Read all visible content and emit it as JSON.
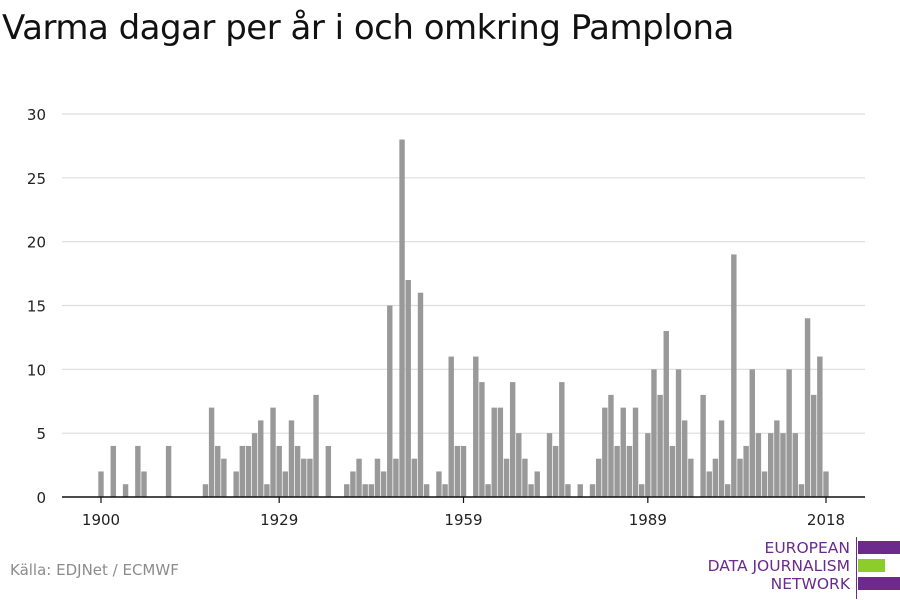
{
  "title": "Varma dagar per år i och omkring Pamplona",
  "source": "Källa: EDJNet / ECMWF",
  "logo": {
    "lines": [
      "EUROPEAN",
      "DATA JOURNALISM",
      "NETWORK"
    ],
    "colors": {
      "purple": "#6b2a8c",
      "green": "#8ccd2b"
    }
  },
  "chart_data": {
    "type": "bar",
    "title": "Varma dagar per år i och omkring Pamplona",
    "xlabel": "",
    "ylabel": "",
    "x_range": [
      1900,
      2018
    ],
    "ylim": [
      0,
      30
    ],
    "yticks": [
      0,
      5,
      10,
      15,
      20,
      25,
      30
    ],
    "xticks": [
      1900,
      1929,
      1959,
      1989,
      2018
    ],
    "grid": true,
    "bar_color": "#999999",
    "years": [
      1900,
      1901,
      1902,
      1903,
      1904,
      1905,
      1906,
      1907,
      1908,
      1909,
      1910,
      1911,
      1912,
      1913,
      1914,
      1915,
      1916,
      1917,
      1918,
      1919,
      1920,
      1921,
      1922,
      1923,
      1924,
      1925,
      1926,
      1927,
      1928,
      1929,
      1930,
      1931,
      1932,
      1933,
      1934,
      1935,
      1936,
      1937,
      1938,
      1939,
      1940,
      1941,
      1942,
      1943,
      1944,
      1945,
      1946,
      1947,
      1948,
      1949,
      1950,
      1951,
      1952,
      1953,
      1954,
      1955,
      1956,
      1957,
      1958,
      1959,
      1960,
      1961,
      1962,
      1963,
      1964,
      1965,
      1966,
      1967,
      1968,
      1969,
      1970,
      1971,
      1972,
      1973,
      1974,
      1975,
      1976,
      1977,
      1978,
      1979,
      1980,
      1981,
      1982,
      1983,
      1984,
      1985,
      1986,
      1987,
      1988,
      1989,
      1990,
      1991,
      1992,
      1993,
      1994,
      1995,
      1996,
      1997,
      1998,
      1999,
      2000,
      2001,
      2002,
      2003,
      2004,
      2005,
      2006,
      2007,
      2008,
      2009,
      2010,
      2011,
      2012,
      2013,
      2014,
      2015,
      2016,
      2017,
      2018
    ],
    "values": [
      2,
      0,
      4,
      0,
      1,
      0,
      4,
      2,
      0,
      0,
      0,
      4,
      0,
      0,
      0,
      0,
      0,
      1,
      7,
      4,
      3,
      0,
      2,
      4,
      4,
      5,
      6,
      1,
      7,
      4,
      2,
      6,
      4,
      3,
      3,
      8,
      0,
      4,
      0,
      0,
      1,
      2,
      3,
      1,
      1,
      3,
      2,
      15,
      3,
      28,
      17,
      3,
      16,
      1,
      0,
      2,
      1,
      11,
      4,
      4,
      0,
      11,
      9,
      1,
      7,
      7,
      3,
      9,
      5,
      3,
      1,
      2,
      0,
      5,
      4,
      9,
      1,
      0,
      1,
      0,
      1,
      3,
      7,
      8,
      4,
      7,
      4,
      7,
      1,
      5,
      10,
      8,
      13,
      4,
      10,
      6,
      3,
      0,
      8,
      2,
      3,
      6,
      1,
      19,
      3,
      4,
      10,
      5,
      2,
      5,
      6,
      5,
      10,
      5,
      1,
      14,
      8,
      11,
      2
    ]
  }
}
